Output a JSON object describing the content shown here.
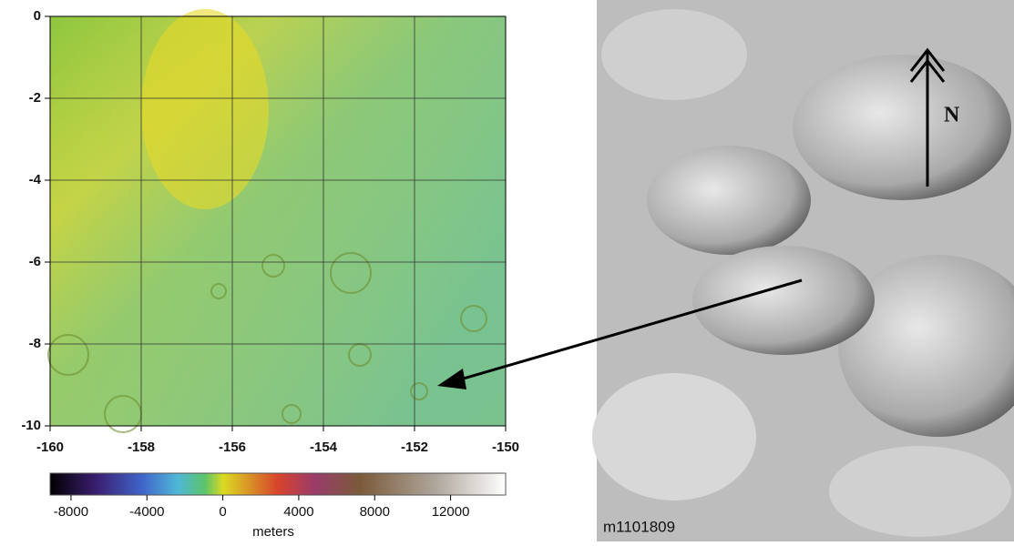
{
  "map": {
    "xlim": [
      -160,
      -150
    ],
    "ylim": [
      -10,
      0
    ],
    "xticks": [
      -160,
      -158,
      -156,
      -154,
      -152,
      -150
    ],
    "yticks": [
      0,
      -2,
      -4,
      -6,
      -8,
      -10
    ],
    "colorbar": {
      "lim": [
        -9100,
        14900
      ],
      "ticks": [
        -8000,
        -4000,
        0,
        4000,
        8000,
        12000
      ],
      "label": "meters"
    }
  },
  "image": {
    "label": "m1101809",
    "north": "N"
  }
}
